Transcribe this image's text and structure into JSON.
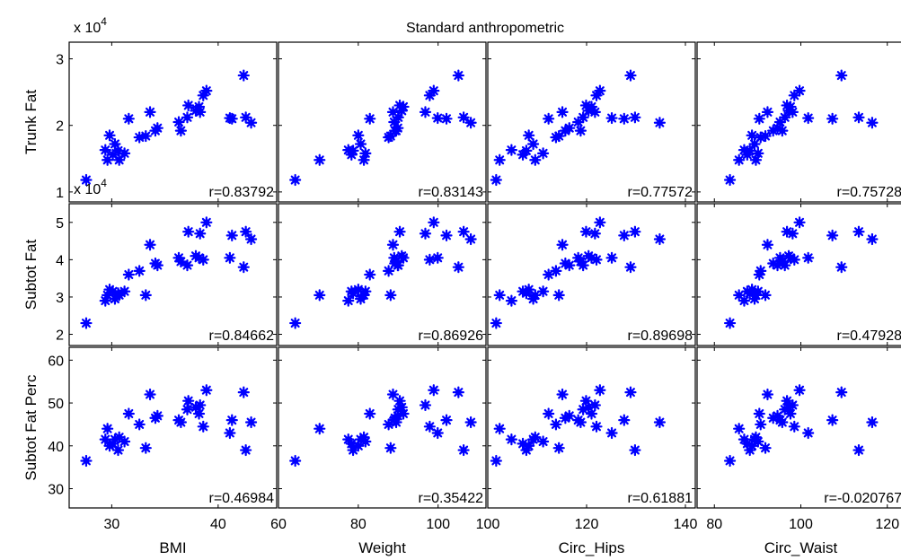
{
  "chart_data": {
    "type": "scatter",
    "title": "Standard anthropometric",
    "marker_color": "#0000ff",
    "rows": [
      {
        "ylabel": "Trunk Fat",
        "exponent": "x 10",
        "exponent_power": "4",
        "ylim": [
          0.85,
          3.25
        ],
        "ticks": [
          1,
          2,
          3
        ],
        "tick_labels": [
          "1",
          "2",
          "3"
        ]
      },
      {
        "ylabel": "Subtot Fat",
        "exponent": "x 10",
        "exponent_power": "4",
        "ylim": [
          1.7,
          5.5
        ],
        "ticks": [
          2,
          3,
          4,
          5
        ],
        "tick_labels": [
          "2",
          "3",
          "4",
          "5"
        ]
      },
      {
        "ylabel": "Subtot Fat Perc",
        "ylim": [
          25.5,
          63
        ],
        "ticks": [
          30,
          40,
          50,
          60
        ],
        "tick_labels": [
          "30",
          "40",
          "50",
          "60"
        ]
      }
    ],
    "cols": [
      {
        "xlabel": "BMI",
        "xlim": [
          26,
          45.5
        ],
        "ticks": [
          30,
          40
        ],
        "tick_labels": [
          "30",
          "40"
        ],
        "x": [
          27.6,
          29.6,
          29.4,
          30.1,
          30.6,
          29.8,
          30.3,
          30.7,
          31.2,
          31.6,
          32.6,
          33.2,
          33.6,
          34.1,
          34.3,
          36.3,
          36.5,
          37.1,
          37.2,
          37.9,
          38.2,
          38.3,
          38.6,
          38.9,
          41.1,
          41.3,
          42.4,
          42.6,
          43.1
        ],
        "corr": [
          "r=0.83792",
          "r=0.84662",
          "r=0.46984"
        ]
      },
      {
        "xlabel": "Weight",
        "xlim": [
          60,
          112
        ],
        "ticks": [
          60,
          80,
          100
        ],
        "tick_labels": [
          "60",
          "80",
          "100"
        ],
        "x": [
          64.2,
          70.3,
          77.5,
          78.3,
          78.7,
          80.0,
          80.6,
          81.4,
          81.8,
          82.9,
          87.6,
          88.1,
          88.7,
          89.2,
          89.9,
          89.0,
          89.5,
          90.0,
          90.4,
          90.9,
          91.3,
          96.8,
          97.9,
          98.9,
          99.9,
          102.1,
          105.1,
          106.4,
          108.2
        ],
        "corr": [
          "r=0.83143",
          "r=0.86926",
          "r=0.35422"
        ]
      },
      {
        "xlabel": "Circ_Hips",
        "xlim": [
          100,
          142
        ],
        "ticks": [
          100,
          120,
          140
        ],
        "tick_labels": [
          "100",
          "120",
          "140"
        ],
        "x": [
          101.7,
          102.4,
          104.8,
          107.1,
          107.8,
          108.3,
          109.2,
          109.6,
          111.2,
          112.3,
          113.8,
          114.4,
          115.1,
          115.7,
          116.5,
          118.3,
          118.8,
          119.3,
          119.9,
          120.4,
          121.0,
          121.7,
          122.0,
          122.7,
          125.1,
          127.6,
          128.9,
          129.8,
          134.8
        ],
        "corr": [
          "r=0.77572",
          "r=0.89698",
          "r=0.61881"
        ]
      },
      {
        "xlabel": "Circ_Waist",
        "xlim": [
          76,
          124
        ],
        "ticks": [
          80,
          100,
          120
        ],
        "tick_labels": [
          "80",
          "100",
          "120"
        ],
        "x": [
          83.6,
          85.7,
          86.9,
          87.6,
          88.2,
          88.7,
          89.3,
          89.6,
          90.1,
          90.4,
          90.7,
          91.8,
          92.3,
          93.6,
          94.6,
          95.2,
          95.7,
          96.3,
          96.8,
          97.2,
          97.6,
          98.1,
          98.5,
          99.7,
          101.7,
          107.3,
          109.4,
          113.4,
          116.5
        ],
        "corr": [
          "r=0.75728",
          "r=0.47928",
          "r=-0.020767"
        ]
      }
    ],
    "y": [
      [
        1.18,
        1.48,
        1.63,
        1.56,
        1.62,
        1.85,
        1.72,
        1.48,
        1.58,
        2.1,
        1.82,
        1.84,
        2.2,
        1.92,
        1.96,
        2.05,
        1.92,
        2.12,
        2.3,
        2.22,
        2.28,
        2.2,
        2.45,
        2.52,
        2.11,
        2.1,
        2.75,
        2.12,
        2.04
      ],
      [
        2.3,
        3.05,
        2.9,
        3.15,
        3.1,
        3.2,
        2.95,
        3.05,
        3.15,
        3.6,
        3.7,
        3.05,
        4.4,
        3.9,
        3.85,
        4.05,
        3.95,
        3.85,
        4.75,
        4.1,
        4.05,
        4.7,
        4.0,
        5.0,
        4.05,
        4.65,
        3.8,
        4.75,
        4.55
      ],
      [
        36.5,
        44.0,
        41.5,
        40.5,
        39.0,
        40.0,
        41.5,
        42.0,
        41.0,
        47.5,
        45.0,
        39.5,
        52.0,
        46.5,
        47.0,
        46.0,
        45.5,
        48.5,
        50.5,
        49.0,
        47.5,
        49.5,
        44.5,
        53.0,
        43.0,
        46.0,
        52.5,
        39.0,
        45.5
      ]
    ]
  }
}
